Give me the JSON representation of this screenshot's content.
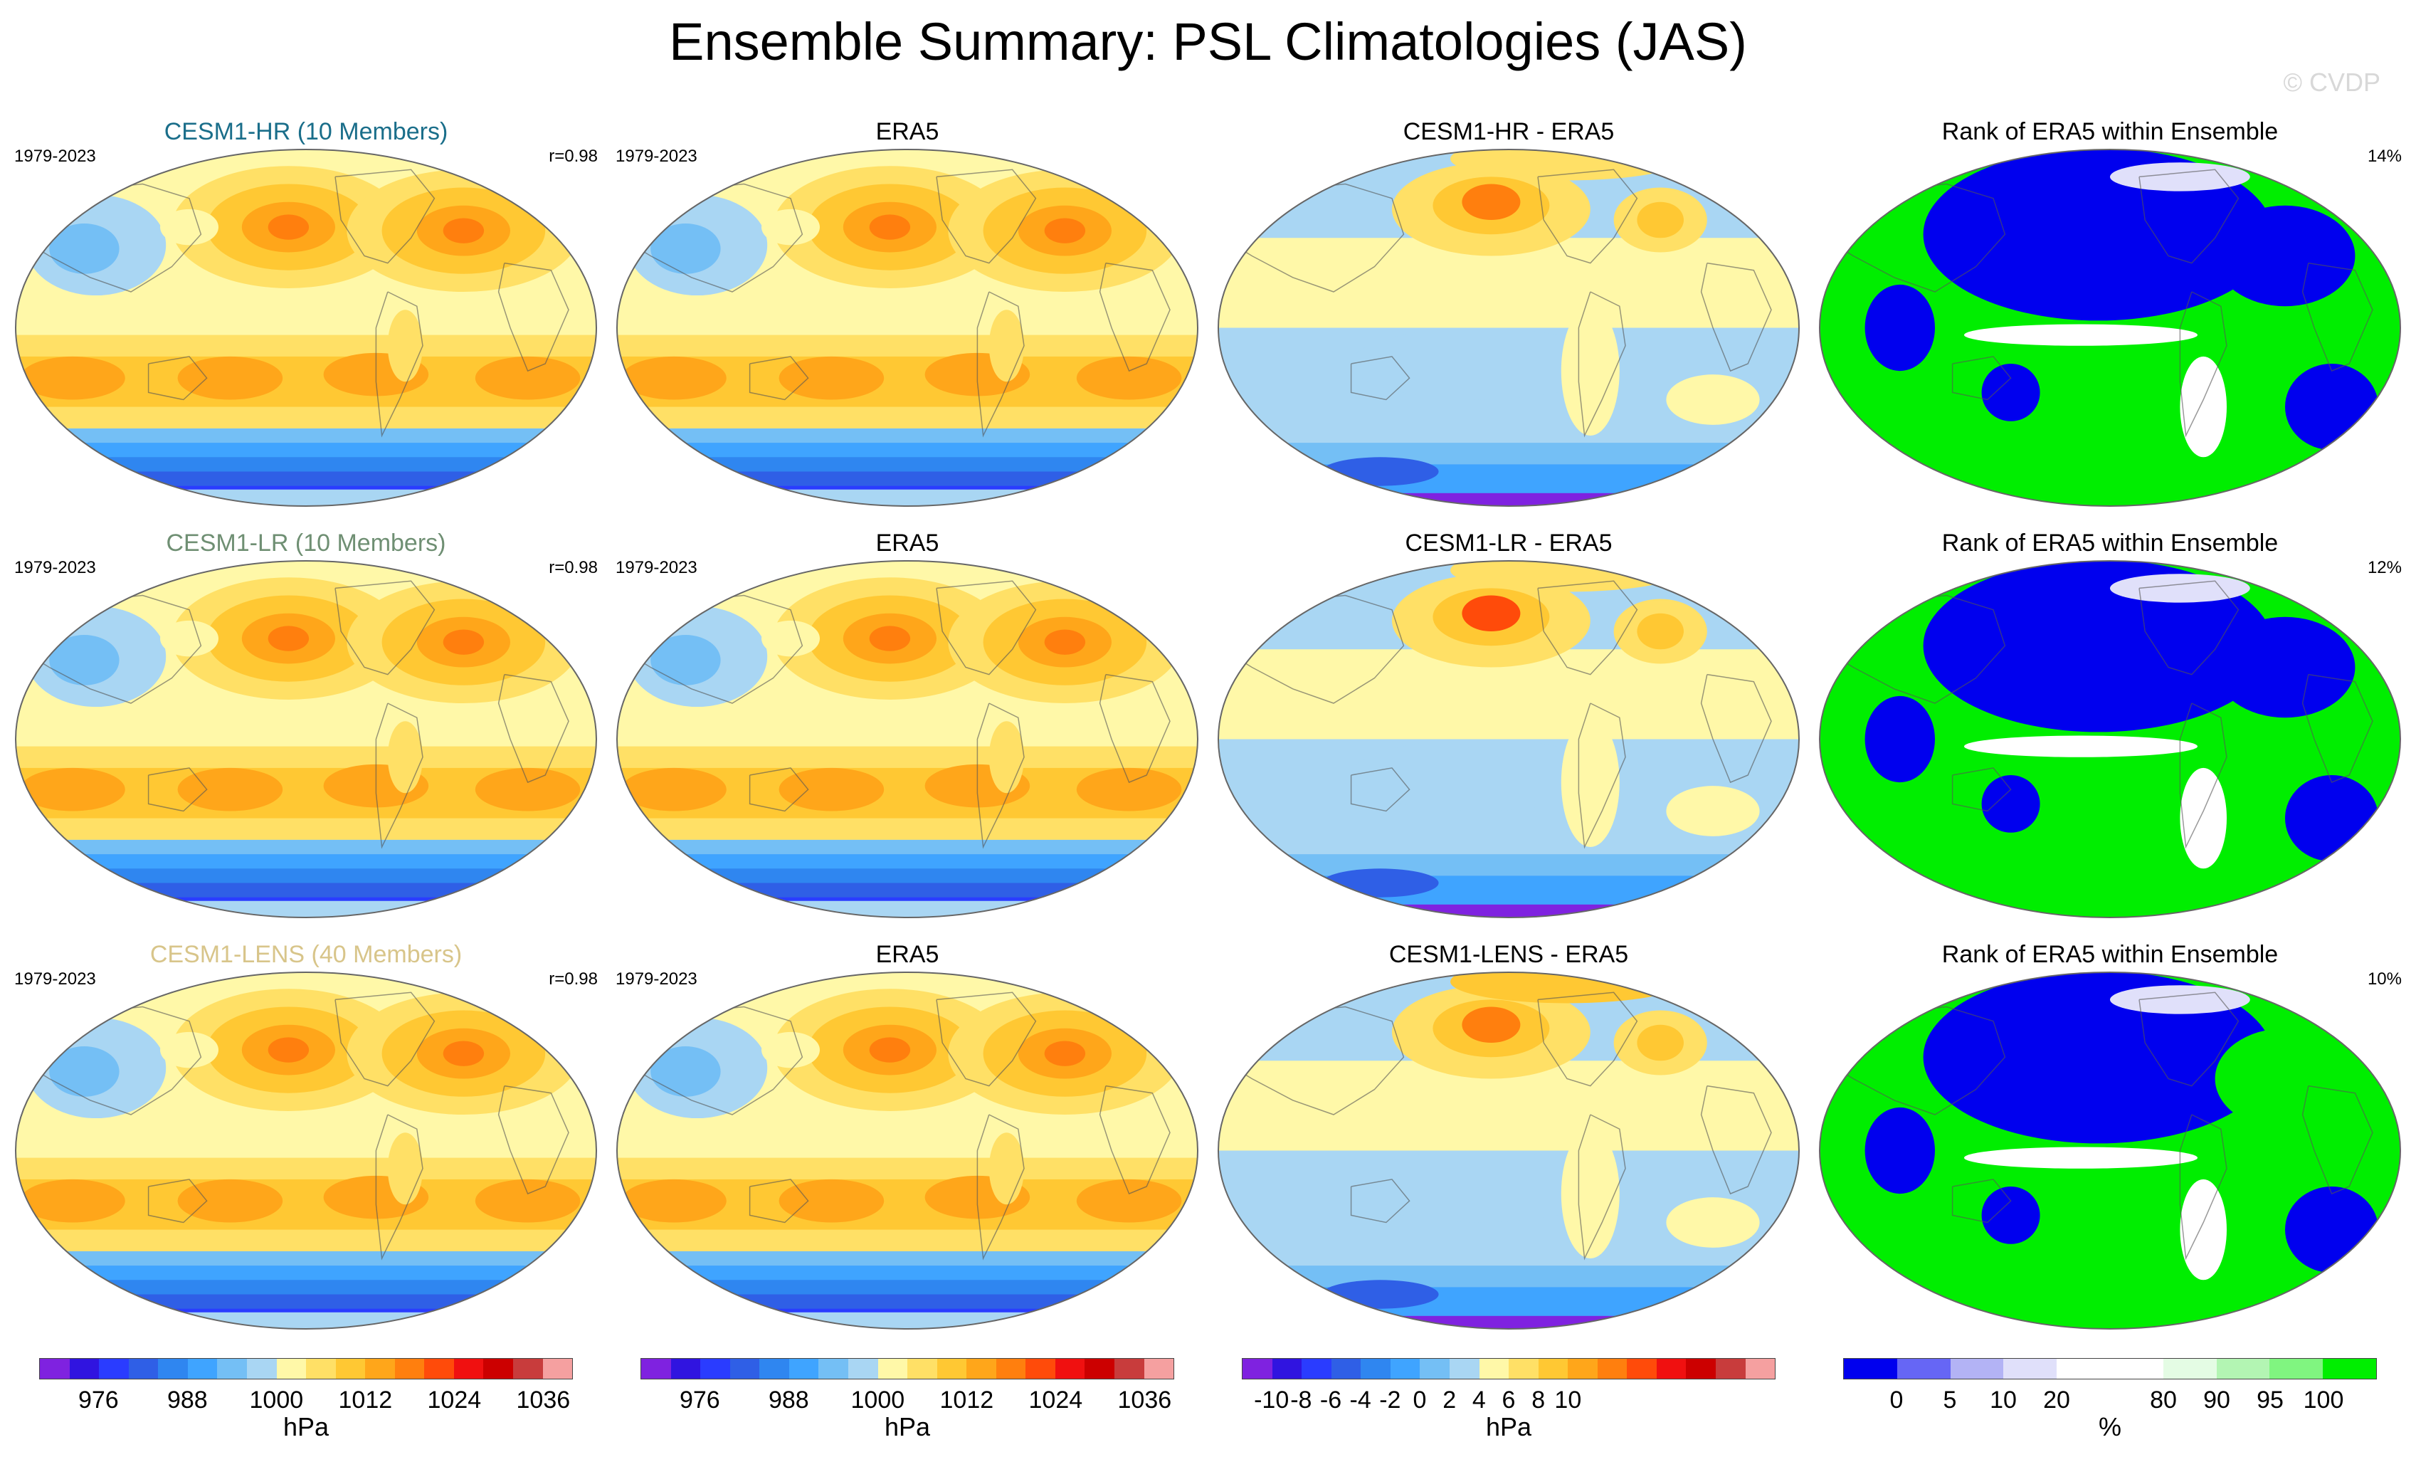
{
  "title": "Ensemble Summary: PSL Climatologies (JAS)",
  "copyright": "© CVDP",
  "rows": [
    {
      "panels": [
        {
          "kind": "model",
          "title": "CESM1-HR (10 Members)",
          "title_color": "#1a6e8a",
          "left": "1979-2023",
          "right": "r=0.98"
        },
        {
          "kind": "obs",
          "title": "ERA5",
          "left": "1979-2023",
          "right": ""
        },
        {
          "kind": "diff",
          "title": "CESM1-HR - ERA5",
          "left": "",
          "right": ""
        },
        {
          "kind": "rank",
          "title": "Rank of ERA5 within Ensemble",
          "left": "",
          "right": "14%"
        }
      ]
    },
    {
      "panels": [
        {
          "kind": "model",
          "title": "CESM1-LR (10 Members)",
          "title_color": "#6f8f73",
          "left": "1979-2023",
          "right": "r=0.98"
        },
        {
          "kind": "obs",
          "title": "ERA5",
          "left": "1979-2023",
          "right": ""
        },
        {
          "kind": "diff",
          "title": "CESM1-LR - ERA5",
          "left": "",
          "right": ""
        },
        {
          "kind": "rank",
          "title": "Rank of ERA5 within Ensemble",
          "left": "",
          "right": "12%"
        }
      ]
    },
    {
      "panels": [
        {
          "kind": "model",
          "title": "CESM1-LENS (40 Members)",
          "title_color": "#d8c58a",
          "left": "1979-2023",
          "right": "r=0.98"
        },
        {
          "kind": "obs",
          "title": "ERA5",
          "left": "1979-2023",
          "right": ""
        },
        {
          "kind": "diff",
          "title": "CESM1-LENS - ERA5",
          "left": "",
          "right": ""
        },
        {
          "kind": "rank",
          "title": "Rank of ERA5 within Ensemble",
          "left": "",
          "right": "10%"
        }
      ]
    }
  ],
  "colorbars": [
    {
      "unit": "hPa",
      "colors": [
        "#7f22e0",
        "#3014e0",
        "#2a3cff",
        "#2f5fe6",
        "#2f86f0",
        "#3fa4ff",
        "#74bff5",
        "#a9d6f3",
        "#fff8a8",
        "#ffe066",
        "#ffc833",
        "#ffa61a",
        "#ff7f0e",
        "#ff4b0a",
        "#f01010",
        "#cc0000",
        "#c83c3c",
        "#f5a0a0"
      ],
      "labels": [
        "976",
        "988",
        "1000",
        "1012",
        "1024",
        "1036"
      ],
      "label_edges": [
        2,
        5,
        8,
        11,
        14,
        17
      ]
    },
    {
      "unit": "hPa",
      "colors": [
        "#7f22e0",
        "#3014e0",
        "#2a3cff",
        "#2f5fe6",
        "#2f86f0",
        "#3fa4ff",
        "#74bff5",
        "#a9d6f3",
        "#fff8a8",
        "#ffe066",
        "#ffc833",
        "#ffa61a",
        "#ff7f0e",
        "#ff4b0a",
        "#f01010",
        "#cc0000",
        "#c83c3c",
        "#f5a0a0"
      ],
      "labels": [
        "976",
        "988",
        "1000",
        "1012",
        "1024",
        "1036"
      ],
      "label_edges": [
        2,
        5,
        8,
        11,
        14,
        17
      ]
    },
    {
      "unit": "hPa",
      "colors": [
        "#7f22e0",
        "#3014e0",
        "#2a3cff",
        "#2f5fe6",
        "#2f86f0",
        "#3fa4ff",
        "#74bff5",
        "#a9d6f3",
        "#fff8a8",
        "#ffe066",
        "#ffc833",
        "#ffa61a",
        "#ff7f0e",
        "#ff4b0a",
        "#f01010",
        "#cc0000",
        "#c83c3c",
        "#f5a0a0"
      ],
      "labels": [
        "-10",
        "-8",
        "-6",
        "-4",
        "-2",
        "0",
        "2",
        "4",
        "6",
        "8",
        "10"
      ],
      "label_edges": [
        1,
        2,
        3,
        4,
        5,
        6,
        7,
        8,
        9,
        10,
        11
      ]
    },
    {
      "unit": "%",
      "colors": [
        "#0000ee",
        "#6666f5",
        "#b3b3f5",
        "#e0e0fa",
        "#ffffff",
        "#ffffff",
        "#e4fce4",
        "#b3f5b3",
        "#80f580",
        "#00ee00"
      ],
      "labels": [
        "0",
        "5",
        "10",
        "20",
        "80",
        "90",
        "95",
        "100"
      ],
      "label_edges": [
        1,
        2,
        3,
        4,
        6,
        7,
        8,
        9
      ]
    }
  ],
  "colors": {
    "cold_land": "#a9d6f3",
    "ocean_rank_low": "#0000ee",
    "rank_high": "#00ee00"
  }
}
